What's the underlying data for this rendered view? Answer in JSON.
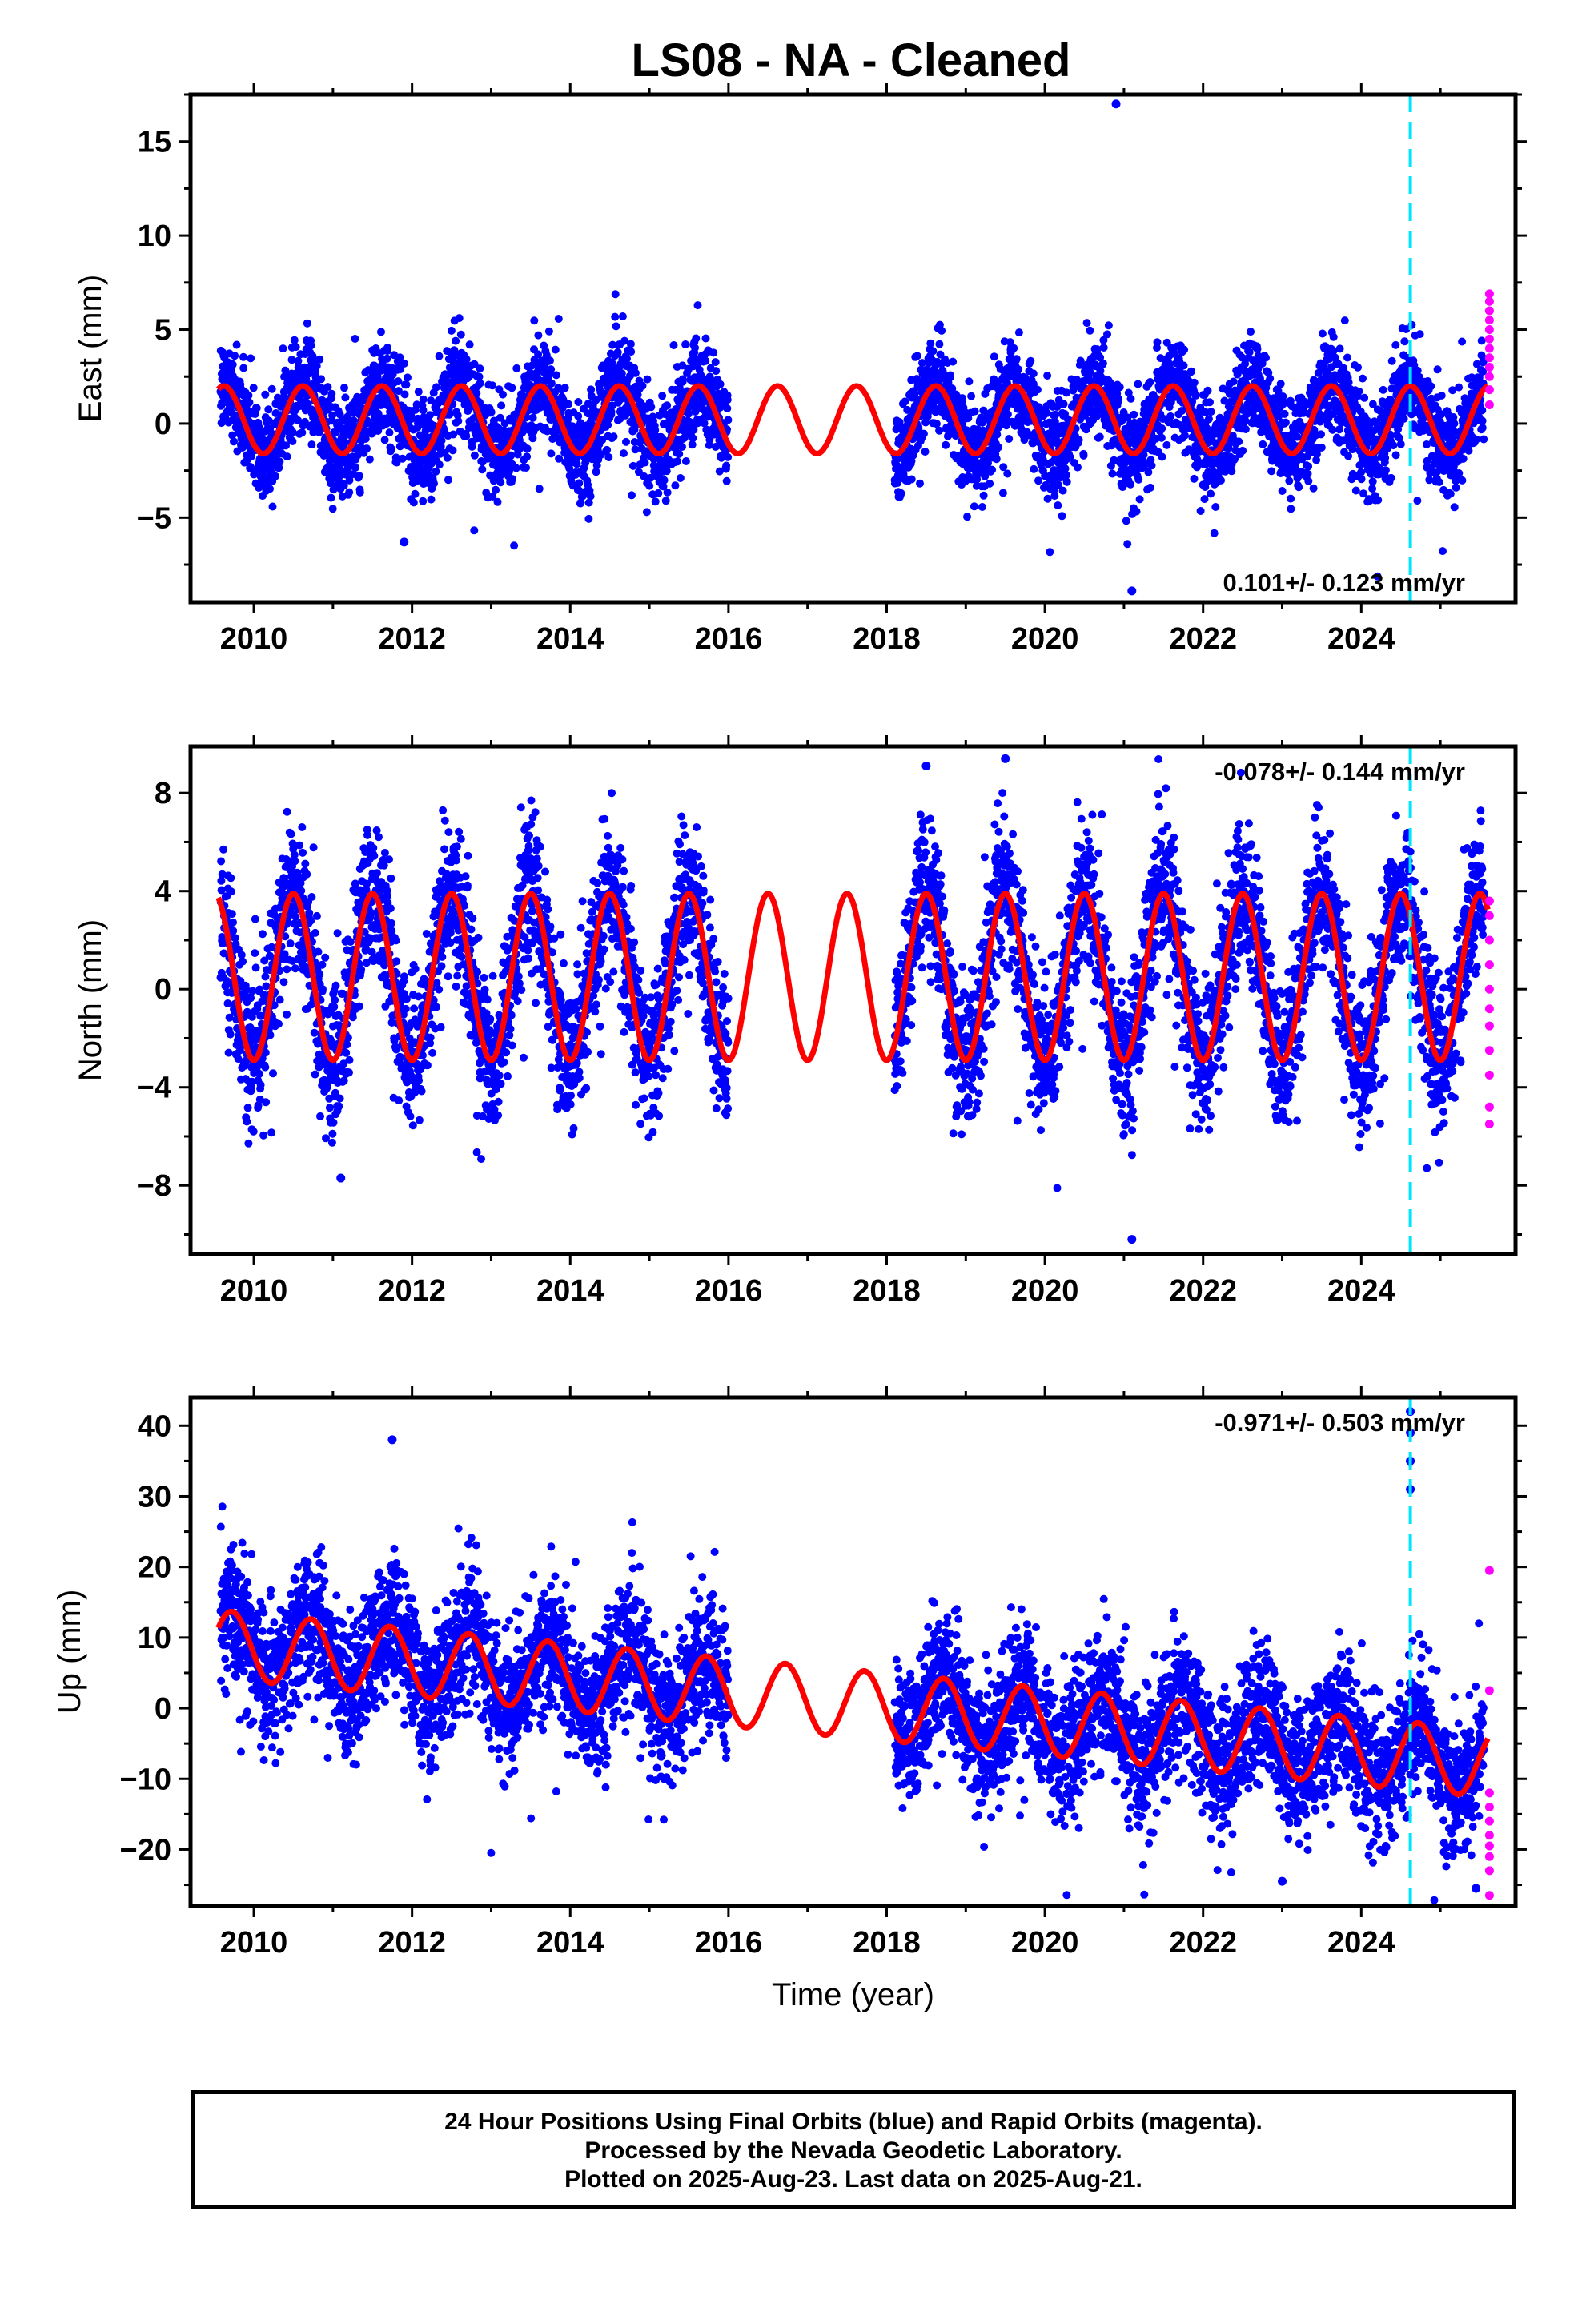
{
  "chart_data": [
    {
      "type": "scatter",
      "title": "LS08  - NA - Cleaned",
      "ylabel": "East (mm)",
      "xlabel": "",
      "xlim": [
        2009.2,
        2025.95
      ],
      "ylim": [
        -9.5,
        17.5
      ],
      "xticks": [
        2010,
        2012,
        2014,
        2016,
        2018,
        2020,
        2022,
        2024
      ],
      "yticks": [
        -5,
        0,
        5,
        10,
        15
      ],
      "grid": false,
      "rate_label": "0.101+/- 0.123 mm/yr",
      "rate_label_position": "bottom-right",
      "event_line_x": 2024.62,
      "model": {
        "mean": 0.2,
        "seasonal_amplitude": 1.8,
        "peak_phase_year": 0.62
      },
      "final_orbits": {
        "color": "#0000ff",
        "segments": [
          [
            2009.58,
            2016.0
          ],
          [
            2018.1,
            2025.55
          ]
        ],
        "scatter_sd": 1.3,
        "outliers": [
          [
            2020.9,
            17.0
          ],
          [
            2021.1,
            -8.9
          ],
          [
            2011.9,
            -6.3
          ]
        ]
      },
      "rapid_orbits": {
        "color": "#ff00ff",
        "x": 2025.62,
        "values": [
          6.9,
          6.5,
          6.0,
          5.5,
          5.0,
          4.5,
          4.0,
          3.5,
          3.0,
          2.5,
          1.8,
          1.0
        ]
      },
      "series": [
        {
          "name": "Final Orbits",
          "color": "#0000ff"
        },
        {
          "name": "Rapid Orbits",
          "color": "#ff00ff"
        }
      ]
    },
    {
      "type": "scatter",
      "ylabel": "North (mm)",
      "xlabel": "",
      "xlim": [
        2009.2,
        2025.95
      ],
      "ylim": [
        -10.8,
        9.9
      ],
      "xticks": [
        2010,
        2012,
        2014,
        2016,
        2018,
        2020,
        2022,
        2024
      ],
      "yticks": [
        -8,
        -4,
        0,
        4,
        8
      ],
      "grid": false,
      "rate_label": "-0.078+/- 0.144 mm/yr",
      "rate_label_position": "top-right",
      "event_line_x": 2024.62,
      "model": {
        "mean": 0.5,
        "seasonal_amplitude": 3.4,
        "peak_phase_year": 0.5
      },
      "final_orbits": {
        "color": "#0000ff",
        "segments": [
          [
            2009.58,
            2016.0
          ],
          [
            2018.1,
            2025.55
          ]
        ],
        "scatter_sd": 1.5,
        "outliers": [
          [
            2019.5,
            9.4
          ],
          [
            2018.5,
            9.1
          ],
          [
            2021.1,
            -10.2
          ],
          [
            2011.1,
            -7.7
          ]
        ]
      },
      "rapid_orbits": {
        "color": "#ff00ff",
        "x": 2025.62,
        "values": [
          3.6,
          3.0,
          2.0,
          1.0,
          0.0,
          -0.8,
          -1.5,
          -2.5,
          -3.5,
          -4.8,
          -5.5
        ]
      },
      "series": [
        {
          "name": "Final Orbits",
          "color": "#0000ff"
        },
        {
          "name": "Rapid Orbits",
          "color": "#ff00ff"
        }
      ]
    },
    {
      "type": "scatter",
      "ylabel": "Up (mm)",
      "xlabel": "Time (year)",
      "xlim": [
        2009.2,
        2025.95
      ],
      "ylim": [
        -28,
        44
      ],
      "xticks": [
        2010,
        2012,
        2014,
        2016,
        2018,
        2020,
        2022,
        2024
      ],
      "yticks": [
        -20,
        -10,
        0,
        10,
        20,
        30,
        40
      ],
      "grid": false,
      "rate_label": "-0.971+/- 0.503 mm/yr",
      "rate_label_position": "top-right",
      "event_line_x": 2024.62,
      "model": {
        "start_value": 9.0,
        "trend_per_year": -1.05,
        "seasonal_amplitude": 4.8,
        "peak_phase_year": 0.72
      },
      "final_orbits": {
        "color": "#0000ff",
        "segments": [
          [
            2009.58,
            2016.0
          ],
          [
            2018.1,
            2025.55
          ]
        ],
        "scatter_sd": 4.8,
        "outliers": [
          [
            2011.75,
            38.0
          ],
          [
            2024.62,
            42.0
          ],
          [
            2024.62,
            39.0
          ],
          [
            2024.62,
            35.0
          ],
          [
            2024.62,
            31.0
          ],
          [
            2023.0,
            -24.5
          ],
          [
            2025.45,
            -25.5
          ]
        ]
      },
      "rapid_orbits": {
        "color": "#ff00ff",
        "x": 2025.62,
        "values": [
          19.5,
          2.5,
          -12.0,
          -14.0,
          -16.0,
          -18.0,
          -19.5,
          -21.0,
          -23.0,
          -26.5
        ]
      },
      "series": [
        {
          "name": "Final Orbits",
          "color": "#0000ff"
        },
        {
          "name": "Rapid Orbits",
          "color": "#ff00ff"
        }
      ]
    }
  ],
  "footer": {
    "line1": "24 Hour Positions Using Final Orbits (blue) and Rapid Orbits (magenta).",
    "line2": "Processed by the Nevada Geodetic Laboratory.",
    "line3": "Plotted on 2025-Aug-23. Last data on 2025-Aug-21."
  },
  "colors": {
    "model_curve": "#ff0000",
    "event_line": "#00e5ff",
    "axes": "#000000"
  }
}
